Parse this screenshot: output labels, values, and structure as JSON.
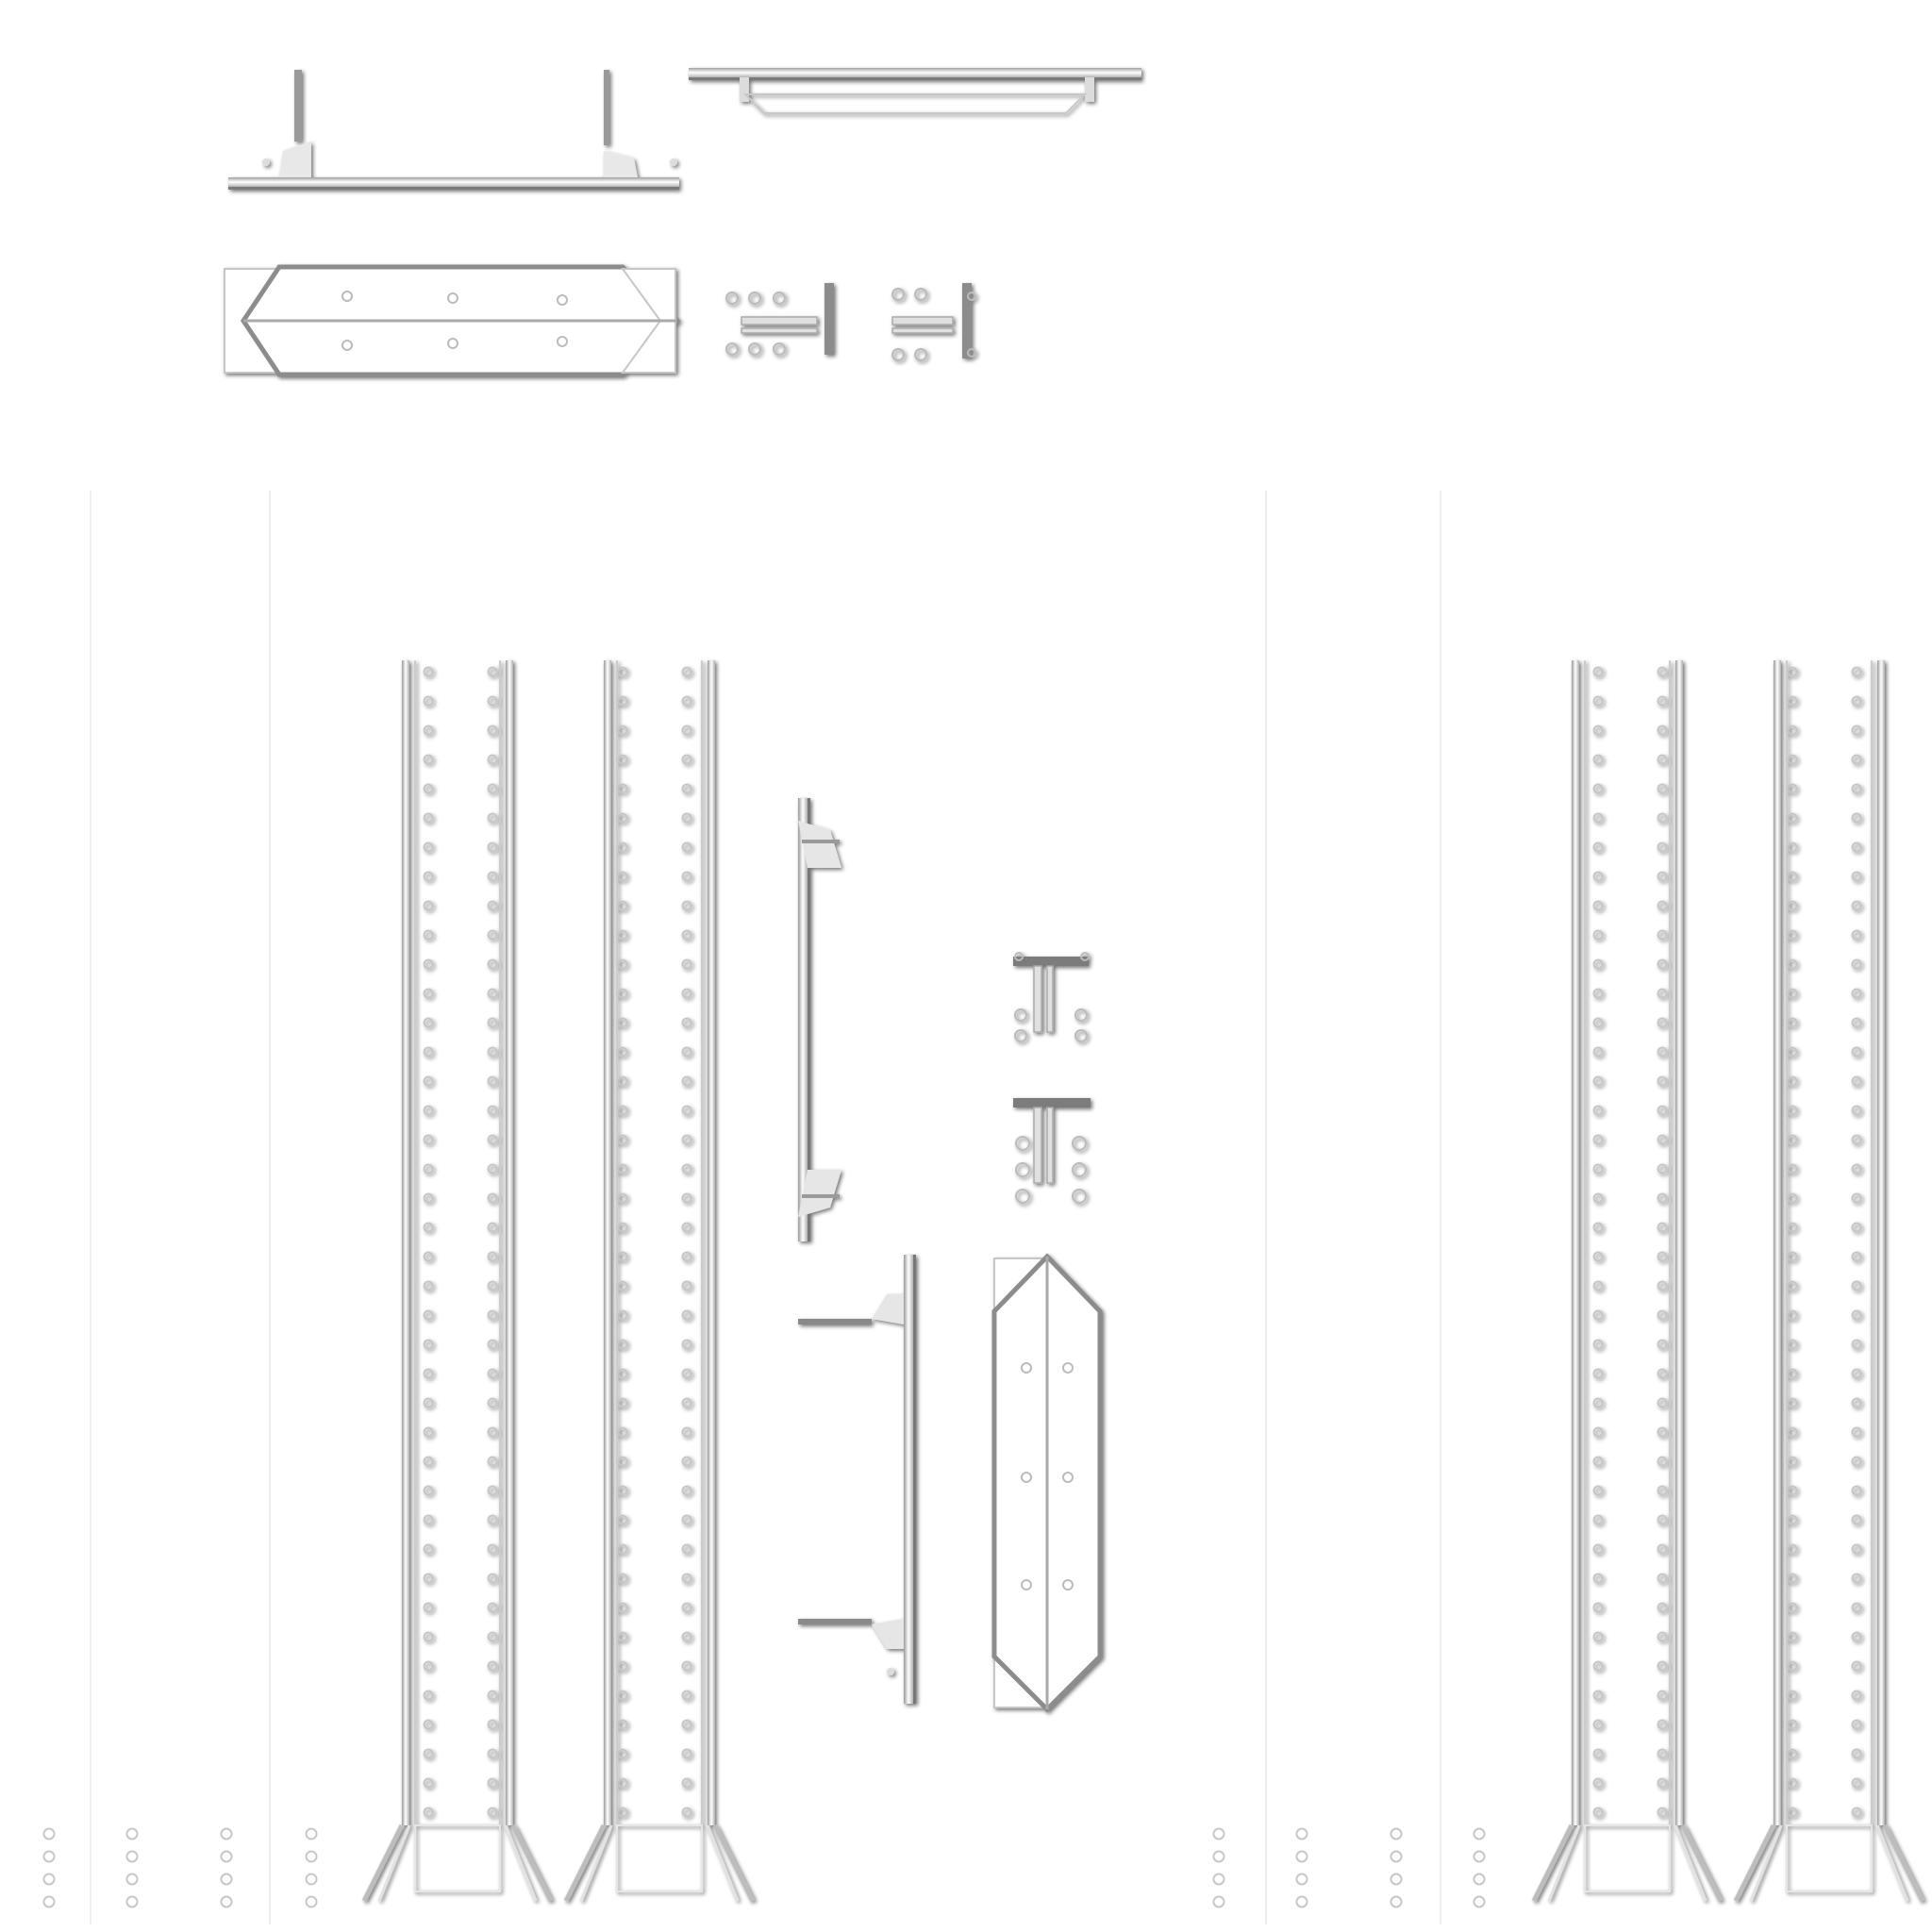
{
  "sheet": {
    "background": "#ffffff",
    "line_color": "#d6d6d6",
    "edge_color": "#f0f0f0",
    "shadow_color": "#333333",
    "hole_color": "#c4c4c4"
  },
  "parts": {
    "horizontal_beam_left": {
      "icon": "i-beam-horizontal-icon"
    },
    "horizontal_beam_right": {
      "icon": "i-beam-horizontal-icon"
    },
    "gusset_plate_horizontal": {
      "icon": "gusset-plate-icon",
      "holes": 6
    },
    "small_connector_a": {
      "icon": "t-connector-icon",
      "holes": 6
    },
    "small_connector_b": {
      "icon": "t-connector-icon",
      "holes": 4
    },
    "vertical_beam_top": {
      "icon": "i-beam-vertical-icon"
    },
    "vertical_beam_bottom": {
      "icon": "i-beam-vertical-icon"
    },
    "t_connector_top": {
      "icon": "t-connector-icon",
      "holes": 4
    },
    "t_connector_bottom": {
      "icon": "t-connector-icon",
      "holes": 6
    },
    "gusset_plate_vertical": {
      "icon": "gusset-plate-icon",
      "holes": 6
    },
    "perforated_column_left_pair": {
      "icon": "perforated-column-icon",
      "count": 2
    },
    "perforated_column_right_pair": {
      "icon": "perforated-column-icon",
      "count": 2
    }
  }
}
